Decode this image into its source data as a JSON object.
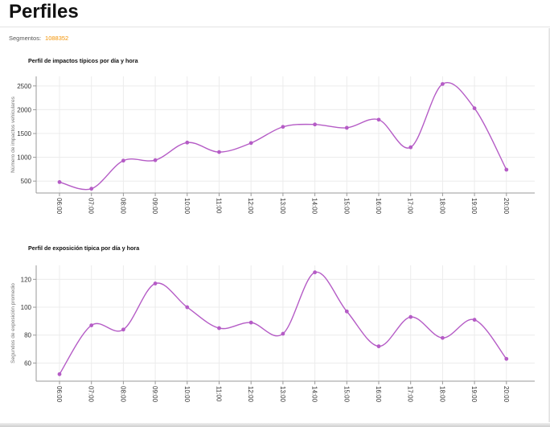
{
  "page": {
    "title": "Perfiles",
    "segments_label": "Segmentos:",
    "segments_value": "1088352"
  },
  "colors": {
    "series": "#b55cc6",
    "segments_value": "#f39200",
    "grid": "#ececec",
    "axis": "#999999"
  },
  "chart_data": [
    {
      "type": "line",
      "title": "Perfil de impactos típicos por día y hora",
      "xlabel": "",
      "ylabel": "Número de impactos vehiculares",
      "categories": [
        "06:00",
        "07:00",
        "08:00",
        "09:00",
        "10:00",
        "11:00",
        "12:00",
        "13:00",
        "14:00",
        "15:00",
        "16:00",
        "17:00",
        "18:00",
        "19:00",
        "20:00"
      ],
      "values": [
        480,
        340,
        930,
        940,
        1310,
        1110,
        1300,
        1640,
        1690,
        1620,
        1790,
        1210,
        2540,
        2030,
        740
      ],
      "yticks": [
        500,
        1000,
        1500,
        2000,
        2500
      ],
      "ylim": [
        250,
        2700
      ],
      "grid": true,
      "smooth": true
    },
    {
      "type": "line",
      "title": "Perfil de exposición típica por día y hora",
      "xlabel": "",
      "ylabel": "Segundos de exposición promedio",
      "categories": [
        "06:00",
        "07:00",
        "08:00",
        "09:00",
        "10:00",
        "11:00",
        "12:00",
        "13:00",
        "14:00",
        "15:00",
        "16:00",
        "17:00",
        "18:00",
        "19:00",
        "20:00"
      ],
      "values": [
        52,
        87,
        84,
        117,
        100,
        85,
        89,
        81,
        125,
        97,
        72,
        93,
        78,
        91,
        63
      ],
      "yticks": [
        60,
        80,
        100,
        120
      ],
      "ylim": [
        47,
        130
      ],
      "grid": true,
      "smooth": true
    }
  ]
}
